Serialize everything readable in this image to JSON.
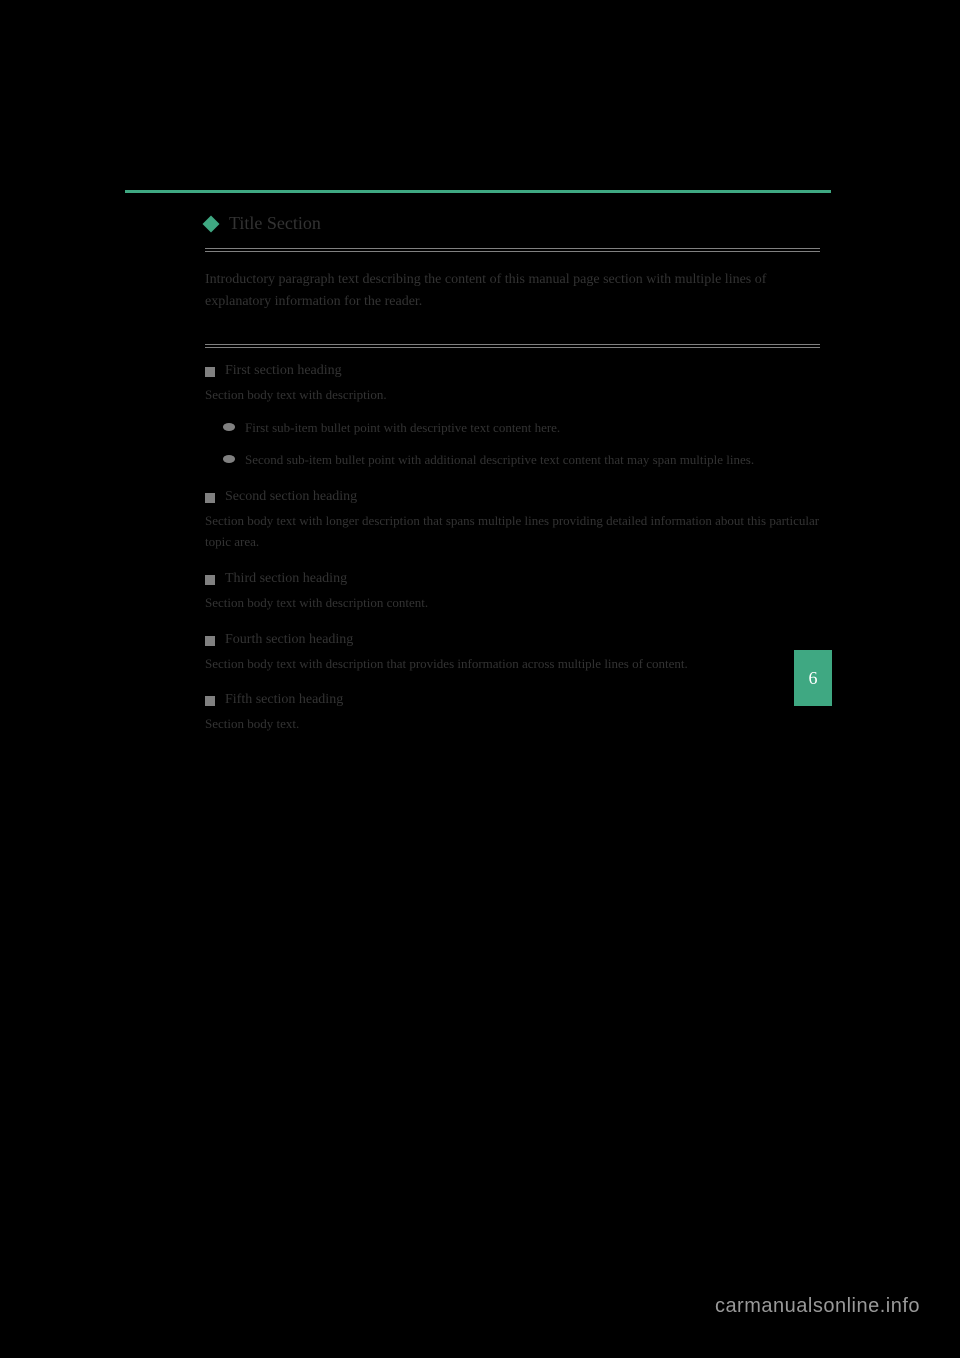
{
  "page_header": {
    "left": "",
    "right": ""
  },
  "colors": {
    "accent": "#3fa882",
    "text": "#333333",
    "bullet_gray": "#808080",
    "background": "#000000",
    "tab_text": "#ffffff",
    "watermark": "#999999"
  },
  "tab": {
    "chapter_number": "6"
  },
  "title": "Title Section",
  "intro": "Introductory paragraph text describing the content of this manual page section with multiple lines of explanatory information for the reader.",
  "sections": [
    {
      "title": "First section heading",
      "body": "Section body text with description.",
      "subitems": [
        {
          "text": "First sub-item bullet point with descriptive text content here."
        },
        {
          "text": "Second sub-item bullet point with additional descriptive text content that may span multiple lines."
        }
      ]
    },
    {
      "title": "Second section heading",
      "body": "Section body text with longer description that spans multiple lines providing detailed information about this particular topic area."
    },
    {
      "title": "Third section heading",
      "body": "Section body text with description content."
    },
    {
      "title": "Fourth section heading",
      "body": "Section body text with description that provides information across multiple lines of content."
    },
    {
      "title": "Fifth section heading",
      "body": "Section body text."
    }
  ],
  "watermark": "carmanualsonline.info"
}
